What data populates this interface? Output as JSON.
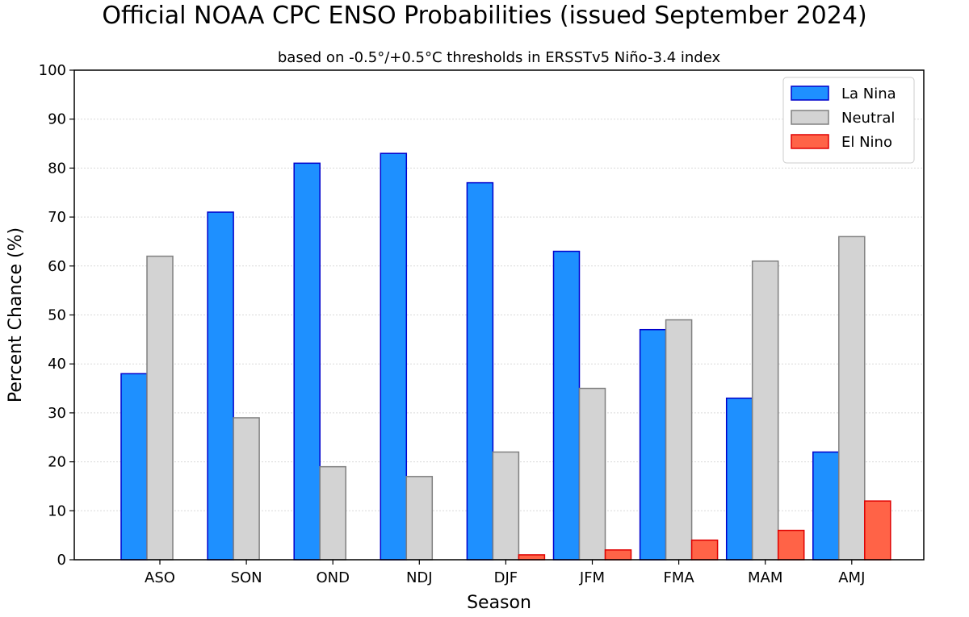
{
  "chart_data": {
    "type": "bar",
    "title": "Official NOAA CPC ENSO Probabilities (issued September 2024)",
    "subtitle": "based on -0.5°/+0.5°C thresholds in ERSSTv5 Niño-3.4 index",
    "xlabel": "Season",
    "ylabel": "Percent Chance (%)",
    "ylim": [
      0,
      100
    ],
    "yticks": [
      0,
      10,
      20,
      30,
      40,
      50,
      60,
      70,
      80,
      90,
      100
    ],
    "grid": "horizontal",
    "legend_position": "top-right",
    "categories": [
      "ASO",
      "SON",
      "OND",
      "NDJ",
      "DJF",
      "JFM",
      "FMA",
      "MAM",
      "AMJ"
    ],
    "series": [
      {
        "name": "La Nina",
        "color": "#1e90ff",
        "edge": "#0000cc",
        "values": [
          38,
          71,
          81,
          83,
          77,
          63,
          47,
          33,
          22
        ]
      },
      {
        "name": "Neutral",
        "color": "#d3d3d3",
        "edge": "#808080",
        "values": [
          62,
          29,
          19,
          17,
          22,
          35,
          49,
          61,
          66
        ]
      },
      {
        "name": "El Nino",
        "color": "#ff6347",
        "edge": "#e00000",
        "values": [
          0,
          0,
          0,
          0,
          1,
          2,
          4,
          6,
          12
        ]
      }
    ]
  }
}
